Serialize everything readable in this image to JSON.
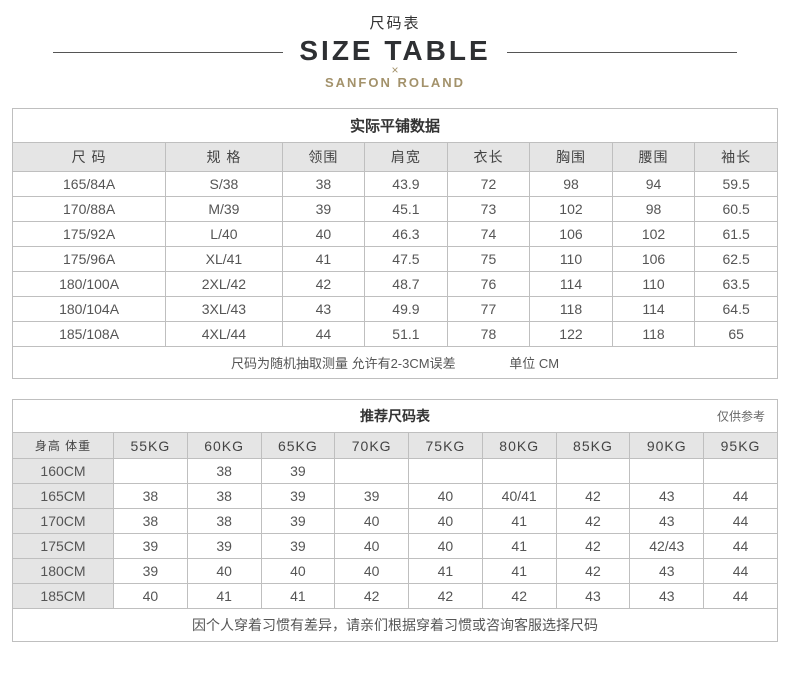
{
  "header": {
    "title_cn": "尺码表",
    "title_en": "SIZE TABLE",
    "cross": "×",
    "brand": "SANFON ROLAND"
  },
  "table1": {
    "section_title": "实际平铺数据",
    "columns": [
      "尺  码",
      "规  格",
      "领围",
      "肩宽",
      "衣长",
      "胸围",
      "腰围",
      "袖长"
    ],
    "rows": [
      [
        "165/84A",
        "S/38",
        "38",
        "43.9",
        "72",
        "98",
        "94",
        "59.5"
      ],
      [
        "170/88A",
        "M/39",
        "39",
        "45.1",
        "73",
        "102",
        "98",
        "60.5"
      ],
      [
        "175/92A",
        "L/40",
        "40",
        "46.3",
        "74",
        "106",
        "102",
        "61.5"
      ],
      [
        "175/96A",
        "XL/41",
        "41",
        "47.5",
        "75",
        "110",
        "106",
        "62.5"
      ],
      [
        "180/100A",
        "2XL/42",
        "42",
        "48.7",
        "76",
        "114",
        "110",
        "63.5"
      ],
      [
        "180/104A",
        "3XL/43",
        "43",
        "49.9",
        "77",
        "118",
        "114",
        "64.5"
      ],
      [
        "185/108A",
        "4XL/44",
        "44",
        "51.1",
        "78",
        "122",
        "118",
        "65"
      ]
    ],
    "footer_note": "尺码为随机抽取测量 允许有2-3CM误差",
    "footer_unit": "单位 CM"
  },
  "table2": {
    "section_title": "推荐尺码表",
    "reference_note": "仅供参考",
    "corner_label": "身高  体重",
    "columns": [
      "55KG",
      "60KG",
      "65KG",
      "70KG",
      "75KG",
      "80KG",
      "85KG",
      "90KG",
      "95KG"
    ],
    "rows": [
      {
        "h": "160CM",
        "c": [
          "",
          "38",
          "39",
          "",
          "",
          "",
          "",
          "",
          ""
        ]
      },
      {
        "h": "165CM",
        "c": [
          "38",
          "38",
          "39",
          "39",
          "40",
          "40/41",
          "42",
          "43",
          "44"
        ]
      },
      {
        "h": "170CM",
        "c": [
          "38",
          "38",
          "39",
          "40",
          "40",
          "41",
          "42",
          "43",
          "44"
        ]
      },
      {
        "h": "175CM",
        "c": [
          "39",
          "39",
          "39",
          "40",
          "40",
          "41",
          "42",
          "42/43",
          "44"
        ]
      },
      {
        "h": "180CM",
        "c": [
          "39",
          "40",
          "40",
          "40",
          "41",
          "41",
          "42",
          "43",
          "44"
        ]
      },
      {
        "h": "185CM",
        "c": [
          "40",
          "41",
          "41",
          "42",
          "42",
          "42",
          "43",
          "43",
          "44"
        ]
      }
    ],
    "footer_note": "因个人穿着习惯有差异，请亲们根据穿着习惯或咨询客服选择尺码"
  },
  "colors": {
    "border": "#bfbfbf",
    "header_bg": "#e5e5e5",
    "brand": "#a3926b",
    "text": "#555555"
  }
}
